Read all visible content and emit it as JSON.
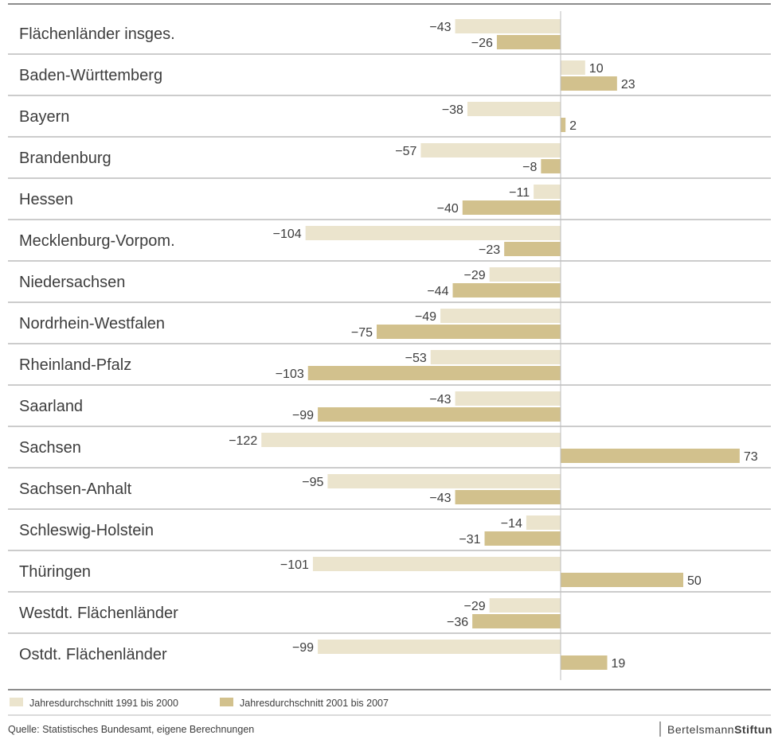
{
  "chart_data": {
    "type": "bar",
    "orientation": "horizontal",
    "categories": [
      "Flächenländer insges.",
      "Baden-Württemberg",
      "Bayern",
      "Brandenburg",
      "Hessen",
      "Mecklenburg-Vorpom.",
      "Niedersachsen",
      "Nordrhein-Westfalen",
      "Rheinland-Pfalz",
      "Saarland",
      "Sachsen",
      "Sachsen-Anhalt",
      "Schleswig-Holstein",
      "Thüringen",
      "Westdt. Flächenländer",
      "Ostdt. Flächenländer"
    ],
    "series": [
      {
        "name": "Jahresdurchschnitt 1991 bis 2000",
        "color": "#ebe4cd",
        "values": [
          -43,
          10,
          -38,
          -57,
          -11,
          -104,
          -29,
          -49,
          -53,
          -43,
          -122,
          -95,
          -14,
          -101,
          -29,
          -99
        ]
      },
      {
        "name": "Jahresdurchschnitt 2001 bis 2007",
        "color": "#d2c18d",
        "values": [
          -26,
          23,
          2,
          -8,
          -40,
          -23,
          -44,
          -75,
          -103,
          -99,
          73,
          -43,
          -31,
          50,
          -36,
          19
        ]
      }
    ],
    "xlim": [
      -122,
      73
    ],
    "grid": false,
    "legend_position": "bottom-left"
  },
  "source": "Quelle: Statistisches Bundesamt, eigene Berechnungen",
  "brand": {
    "part1": "Bertelsmann",
    "part2": "Stiftun"
  },
  "colors": {
    "separator": "#9a9a9a",
    "axis": "#bdbdbd",
    "text": "#3d3d3d"
  }
}
